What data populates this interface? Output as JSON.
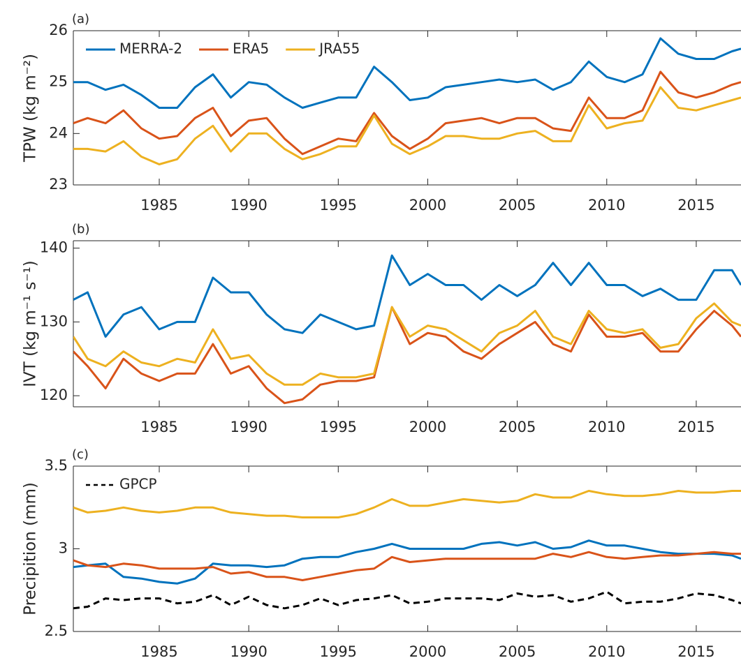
{
  "chart_data": [
    {
      "type": "line",
      "panel_label": "(a)",
      "y_label": "TPW (kg m⁻²)",
      "x": [
        1980.2,
        1981,
        1982,
        1983,
        1984,
        1985,
        1986,
        1987,
        1988,
        1989,
        1990,
        1991,
        1992,
        1993,
        1994,
        1995,
        1996,
        1997,
        1998,
        1999,
        2000,
        2001,
        2002,
        2003,
        2004,
        2005,
        2006,
        2007,
        2008,
        2009,
        2010,
        2011,
        2012,
        2013,
        2014,
        2015,
        2016,
        2017,
        2017.5
      ],
      "series": [
        {
          "name": "MERRA-2",
          "color": "#0072bd",
          "values": [
            25.0,
            25.0,
            24.85,
            24.95,
            24.75,
            24.5,
            24.5,
            24.9,
            25.15,
            24.7,
            25.0,
            24.95,
            24.7,
            24.5,
            24.6,
            24.7,
            24.7,
            25.3,
            25.0,
            24.65,
            24.7,
            24.9,
            24.95,
            25.0,
            25.05,
            25.0,
            25.05,
            24.85,
            25.0,
            25.4,
            25.1,
            25.0,
            25.15,
            25.85,
            25.55,
            25.45,
            25.45,
            25.6,
            25.65
          ]
        },
        {
          "name": "ERA5",
          "color": "#d95319",
          "values": [
            24.2,
            24.3,
            24.2,
            24.45,
            24.1,
            23.9,
            23.95,
            24.3,
            24.5,
            23.95,
            24.25,
            24.3,
            23.9,
            23.6,
            23.75,
            23.9,
            23.85,
            24.4,
            23.95,
            23.7,
            23.9,
            24.2,
            24.25,
            24.3,
            24.2,
            24.3,
            24.3,
            24.1,
            24.05,
            24.7,
            24.3,
            24.3,
            24.45,
            25.2,
            24.8,
            24.7,
            24.8,
            24.95,
            25.0
          ]
        },
        {
          "name": "JRA55",
          "color": "#edb120",
          "values": [
            23.7,
            23.7,
            23.65,
            23.85,
            23.55,
            23.4,
            23.5,
            23.9,
            24.15,
            23.65,
            24.0,
            24.0,
            23.7,
            23.5,
            23.6,
            23.75,
            23.75,
            24.35,
            23.8,
            23.6,
            23.75,
            23.95,
            23.95,
            23.9,
            23.9,
            24.0,
            24.05,
            23.85,
            23.85,
            24.55,
            24.1,
            24.2,
            24.25,
            24.9,
            24.5,
            24.45,
            24.55,
            24.65,
            24.7
          ]
        }
      ],
      "xlim": [
        1980.2,
        2017.5
      ],
      "xticks": [
        1985,
        1990,
        1995,
        2000,
        2005,
        2010,
        2015
      ],
      "ylim": [
        23,
        26
      ],
      "yticks": [
        23,
        24,
        25,
        26
      ],
      "legend": "upper left"
    },
    {
      "type": "line",
      "panel_label": "(b)",
      "y_label": "IVT (kg m⁻¹ s⁻¹)",
      "x": [
        1980.2,
        1981,
        1982,
        1983,
        1984,
        1985,
        1986,
        1987,
        1988,
        1989,
        1990,
        1991,
        1992,
        1993,
        1994,
        1995,
        1996,
        1997,
        1998,
        1999,
        2000,
        2001,
        2002,
        2003,
        2004,
        2005,
        2006,
        2007,
        2008,
        2009,
        2010,
        2011,
        2012,
        2013,
        2014,
        2015,
        2016,
        2017,
        2017.5
      ],
      "series": [
        {
          "name": "MERRA-2",
          "color": "#0072bd",
          "values": [
            133,
            134,
            128,
            131,
            132,
            129,
            130,
            130,
            136,
            134,
            134,
            131,
            129,
            128.5,
            131,
            130,
            129,
            129.5,
            139,
            135,
            136.5,
            135,
            135,
            133,
            135,
            133.5,
            135,
            138,
            135,
            138,
            135,
            135,
            133.5,
            134.5,
            133,
            133,
            137,
            137,
            135
          ]
        },
        {
          "name": "ERA5",
          "color": "#d95319",
          "values": [
            126,
            124,
            121,
            125,
            123,
            122,
            123,
            123,
            127,
            123,
            124,
            121,
            119,
            119.5,
            121.5,
            122,
            122,
            122.5,
            132,
            127,
            128.5,
            128,
            126,
            125,
            127,
            128.5,
            130,
            127,
            126,
            131,
            128,
            128,
            128.5,
            126,
            126,
            129,
            131.5,
            129.5,
            128
          ]
        },
        {
          "name": "JRA55",
          "color": "#edb120",
          "values": [
            128,
            125,
            124,
            126,
            124.5,
            124,
            125,
            124.5,
            129,
            125,
            125.5,
            123,
            121.5,
            121.5,
            123,
            122.5,
            122.5,
            123,
            132,
            128,
            129.5,
            129,
            127.5,
            126,
            128.5,
            129.5,
            131.5,
            128,
            127,
            131.5,
            129,
            128.5,
            129,
            126.5,
            127,
            130.5,
            132.5,
            130,
            129.5
          ]
        }
      ],
      "xlim": [
        1980.2,
        2017.5
      ],
      "xticks": [
        1985,
        1990,
        1995,
        2000,
        2005,
        2010,
        2015
      ],
      "ylim": [
        118.5,
        141
      ],
      "yticks": [
        120,
        130,
        140
      ]
    },
    {
      "type": "line",
      "panel_label": "(c)",
      "y_label": "Precipition (mm)",
      "x": [
        1980.2,
        1981,
        1982,
        1983,
        1984,
        1985,
        1986,
        1987,
        1988,
        1989,
        1990,
        1991,
        1992,
        1993,
        1994,
        1995,
        1996,
        1997,
        1998,
        1999,
        2000,
        2001,
        2002,
        2003,
        2004,
        2005,
        2006,
        2007,
        2008,
        2009,
        2010,
        2011,
        2012,
        2013,
        2014,
        2015,
        2016,
        2017,
        2017.5
      ],
      "series": [
        {
          "name": "JRA55",
          "color": "#edb120",
          "values": [
            3.25,
            3.22,
            3.23,
            3.25,
            3.23,
            3.22,
            3.23,
            3.25,
            3.25,
            3.22,
            3.21,
            3.2,
            3.2,
            3.19,
            3.19,
            3.19,
            3.21,
            3.25,
            3.3,
            3.26,
            3.26,
            3.28,
            3.3,
            3.29,
            3.28,
            3.29,
            3.33,
            3.31,
            3.31,
            3.35,
            3.33,
            3.32,
            3.32,
            3.33,
            3.35,
            3.34,
            3.34,
            3.35,
            3.35
          ]
        },
        {
          "name": "MERRA-2",
          "color": "#0072bd",
          "values": [
            2.89,
            2.9,
            2.91,
            2.83,
            2.82,
            2.8,
            2.79,
            2.82,
            2.91,
            2.9,
            2.9,
            2.89,
            2.9,
            2.94,
            2.95,
            2.95,
            2.98,
            3.0,
            3.03,
            3.0,
            3.0,
            3.0,
            3.0,
            3.03,
            3.04,
            3.02,
            3.04,
            3.0,
            3.01,
            3.05,
            3.02,
            3.02,
            3.0,
            2.98,
            2.97,
            2.97,
            2.97,
            2.96,
            2.94
          ]
        },
        {
          "name": "ERA5",
          "color": "#d95319",
          "values": [
            2.93,
            2.9,
            2.89,
            2.91,
            2.9,
            2.88,
            2.88,
            2.88,
            2.89,
            2.85,
            2.86,
            2.83,
            2.83,
            2.81,
            2.83,
            2.85,
            2.87,
            2.88,
            2.95,
            2.92,
            2.93,
            2.94,
            2.94,
            2.94,
            2.94,
            2.94,
            2.94,
            2.97,
            2.95,
            2.98,
            2.95,
            2.94,
            2.95,
            2.96,
            2.96,
            2.97,
            2.98,
            2.97,
            2.97
          ]
        },
        {
          "name": "GPCP",
          "color": "#000000",
          "style": "dashed",
          "in_legend": true,
          "values": [
            2.64,
            2.65,
            2.7,
            2.69,
            2.7,
            2.7,
            2.67,
            2.68,
            2.72,
            2.66,
            2.71,
            2.66,
            2.64,
            2.66,
            2.7,
            2.66,
            2.69,
            2.7,
            2.72,
            2.67,
            2.68,
            2.7,
            2.7,
            2.7,
            2.69,
            2.73,
            2.71,
            2.72,
            2.68,
            2.7,
            2.74,
            2.67,
            2.68,
            2.68,
            2.7,
            2.73,
            2.72,
            2.69,
            2.67
          ]
        }
      ],
      "xlim": [
        1980.2,
        2017.5
      ],
      "xticks": [
        1985,
        1990,
        1995,
        2000,
        2005,
        2010,
        2015
      ],
      "ylim": [
        2.5,
        3.5
      ],
      "yticks": [
        2.5,
        3,
        3.5
      ],
      "legend": "upper left"
    }
  ]
}
